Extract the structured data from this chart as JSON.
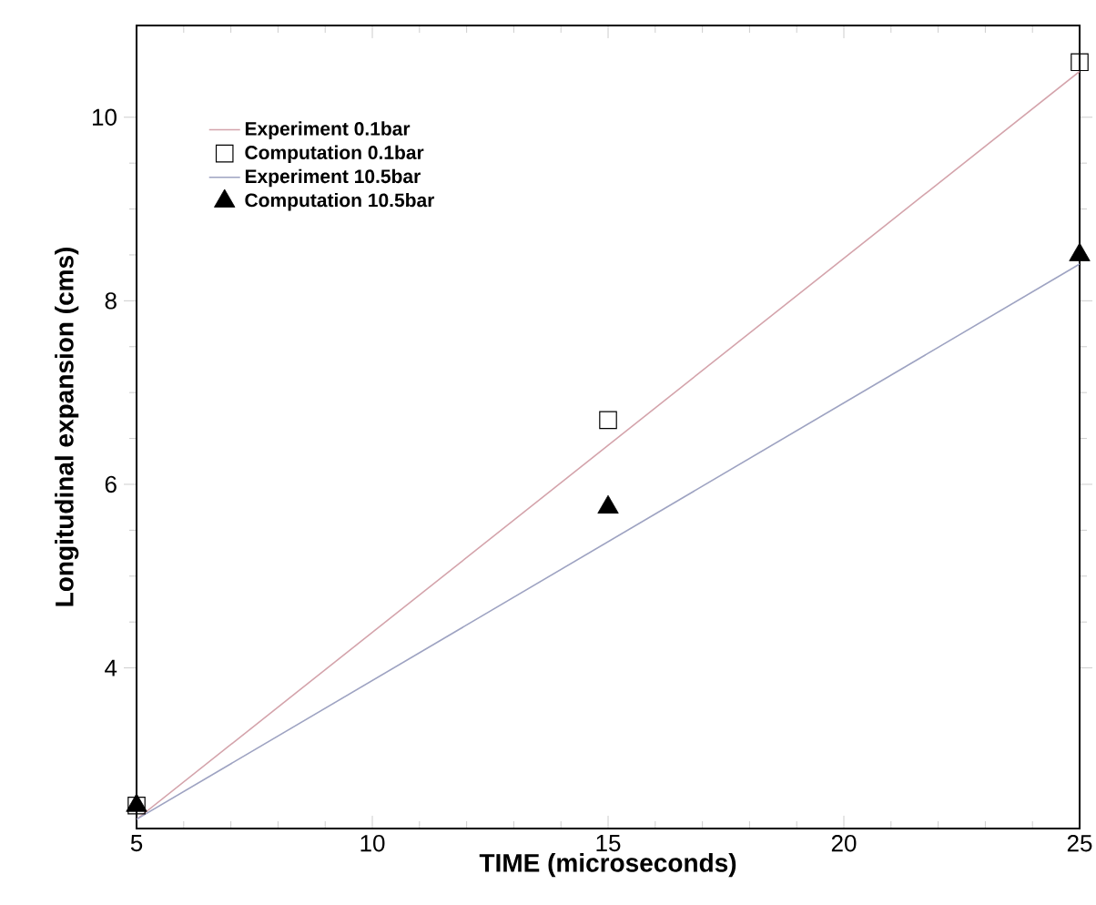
{
  "chart_data": {
    "type": "line",
    "xlabel": "TIME (microseconds)",
    "ylabel": "Longitudinal expansion (cms)",
    "xlim": [
      5,
      25
    ],
    "ylim": [
      2.25,
      11
    ],
    "xticks": [
      5,
      10,
      15,
      20,
      25
    ],
    "yticks": [
      4,
      6,
      8,
      10
    ],
    "grid": false,
    "legend": "top left",
    "series": [
      {
        "name": "Experiment 0.1bar",
        "color": "#d4a3ab",
        "x": [
          5,
          25
        ],
        "values": [
          2.35,
          10.5
        ]
      },
      {
        "name": "Computation 0.1bar",
        "type": "scatter",
        "marker": "square",
        "color": "#000000",
        "x": [
          5,
          15,
          25
        ],
        "values": [
          2.5,
          6.7,
          10.6
        ]
      },
      {
        "name": "Experiment 10.5bar",
        "color": "#9ea3c2",
        "x": [
          5,
          25
        ],
        "values": [
          2.35,
          8.4
        ]
      },
      {
        "name": "Computation 10.5bar",
        "type": "scatter",
        "marker": "triangle",
        "color": "#000000",
        "x": [
          5,
          15,
          25
        ],
        "values": [
          2.5,
          5.75,
          8.5
        ]
      }
    ]
  }
}
